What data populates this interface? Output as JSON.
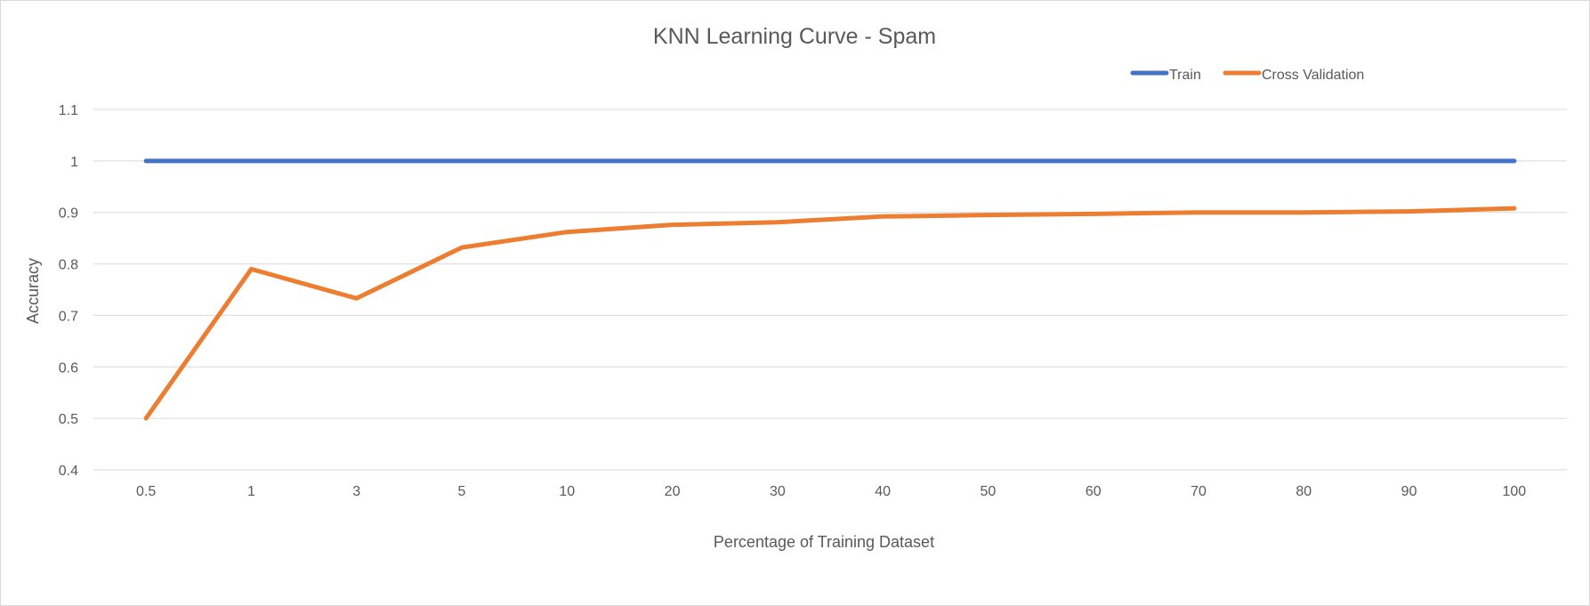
{
  "chart_data": {
    "type": "line",
    "title": "KNN Learning Curve - Spam",
    "xlabel": "Percentage of Training Dataset",
    "ylabel": "Accuracy",
    "categories": [
      "0.5",
      "1",
      "3",
      "5",
      "10",
      "20",
      "30",
      "40",
      "50",
      "60",
      "70",
      "80",
      "90",
      "100"
    ],
    "ylim": [
      0.4,
      1.1
    ],
    "yticks": [
      "0.4",
      "0.5",
      "0.6",
      "0.7",
      "0.8",
      "0.9",
      "1",
      "1.1"
    ],
    "grid": true,
    "legend_position": "top-right",
    "series": [
      {
        "name": "Train",
        "color": "#4472c4",
        "values": [
          1,
          1,
          1,
          1,
          1,
          1,
          1,
          1,
          1,
          1,
          1,
          1,
          1,
          1
        ]
      },
      {
        "name": "Cross Validation",
        "color": "#ed7d31",
        "values": [
          0.5,
          0.79,
          0.733,
          0.832,
          0.862,
          0.876,
          0.881,
          0.892,
          0.895,
          0.897,
          0.9,
          0.9,
          0.902,
          0.908
        ]
      }
    ]
  }
}
